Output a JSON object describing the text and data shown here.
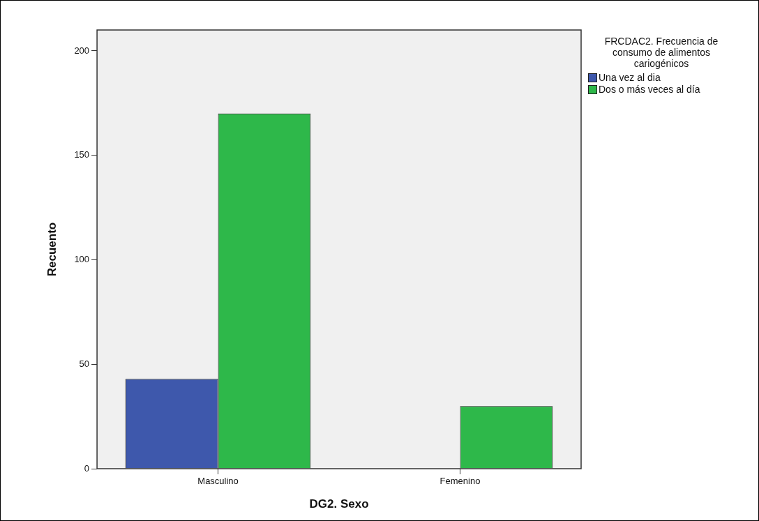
{
  "chart_data": {
    "type": "bar",
    "xlabel": "DG2. Sexo",
    "ylabel": "Recuento",
    "legend_title": "FRCDAC2. Frecuencia de consumo de alimentos cariogénicos",
    "categories": [
      "Masculino",
      "Femenino"
    ],
    "series": [
      {
        "name": "Una vez al dia",
        "color": "#3e58ac",
        "values": [
          43,
          null
        ]
      },
      {
        "name": "Dos o más veces al día",
        "color": "#2eb84a",
        "values": [
          170,
          30
        ]
      }
    ],
    "ylim": [
      0,
      210
    ],
    "yticks": [
      0,
      50,
      100,
      150,
      200
    ],
    "grid": false,
    "legend": "top right"
  }
}
